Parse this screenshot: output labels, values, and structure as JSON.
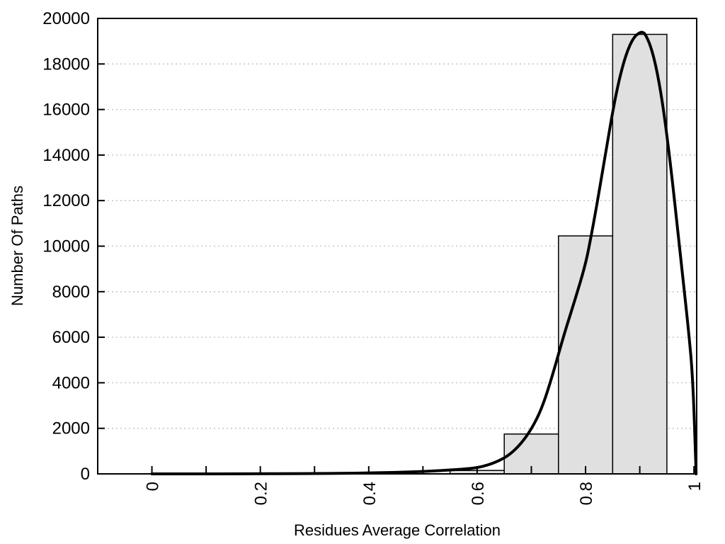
{
  "figure": {
    "background": "#ffffff",
    "text_color": "#000000"
  },
  "chart_data": {
    "type": "bar",
    "subtype": "histogram-with-fit-curve",
    "title": "",
    "xlabel": "Residues Average Correlation",
    "ylabel": "Number Of Paths",
    "xlim": [
      -0.1,
      1.005
    ],
    "ylim": [
      0,
      20000
    ],
    "grid": {
      "axis": "y",
      "style": "dotted",
      "color": "#bfbfbf"
    },
    "x_ticks": [
      {
        "v": 0.0,
        "label": "0"
      },
      {
        "v": 0.1,
        "label": ""
      },
      {
        "v": 0.2,
        "label": "0.2"
      },
      {
        "v": 0.3,
        "label": ""
      },
      {
        "v": 0.4,
        "label": "0.4"
      },
      {
        "v": 0.5,
        "label": ""
      },
      {
        "v": 0.6,
        "label": "0.6"
      },
      {
        "v": 0.7,
        "label": ""
      },
      {
        "v": 0.8,
        "label": "0.8"
      },
      {
        "v": 0.9,
        "label": ""
      },
      {
        "v": 1.0,
        "label": "1"
      }
    ],
    "y_ticks": [
      {
        "v": 0,
        "label": "0",
        "grid": false
      },
      {
        "v": 2000,
        "label": "2000",
        "grid": true
      },
      {
        "v": 4000,
        "label": "4000",
        "grid": true
      },
      {
        "v": 6000,
        "label": "6000",
        "grid": true
      },
      {
        "v": 8000,
        "label": "8000",
        "grid": true
      },
      {
        "v": 10000,
        "label": "10000",
        "grid": true
      },
      {
        "v": 12000,
        "label": "12000",
        "grid": true
      },
      {
        "v": 14000,
        "label": "14000",
        "grid": true
      },
      {
        "v": 16000,
        "label": "16000",
        "grid": true
      },
      {
        "v": 18000,
        "label": "18000",
        "grid": true
      },
      {
        "v": 20000,
        "label": "20000",
        "grid": false
      }
    ],
    "bars": {
      "fill": "#e0e0e0",
      "stroke": "#000000",
      "bins": [
        {
          "x0": 0.55,
          "x1": 0.65,
          "value": 150
        },
        {
          "x0": 0.65,
          "x1": 0.75,
          "value": 1750
        },
        {
          "x0": 0.75,
          "x1": 0.85,
          "value": 10450
        },
        {
          "x0": 0.85,
          "x1": 0.95,
          "value": 19300
        }
      ]
    },
    "curve": {
      "color": "#000000",
      "width": 4,
      "peak": {
        "x": 0.905,
        "value": 19400
      },
      "points": [
        [
          0.0,
          0
        ],
        [
          0.05,
          0
        ],
        [
          0.1,
          0
        ],
        [
          0.15,
          3
        ],
        [
          0.2,
          6
        ],
        [
          0.25,
          10
        ],
        [
          0.3,
          15
        ],
        [
          0.35,
          25
        ],
        [
          0.4,
          40
        ],
        [
          0.45,
          65
        ],
        [
          0.5,
          105
        ],
        [
          0.55,
          170
        ],
        [
          0.58,
          220
        ],
        [
          0.6,
          270
        ],
        [
          0.62,
          390
        ],
        [
          0.64,
          570
        ],
        [
          0.66,
          840
        ],
        [
          0.68,
          1300
        ],
        [
          0.7,
          1950
        ],
        [
          0.72,
          2900
        ],
        [
          0.74,
          4400
        ],
        [
          0.76,
          6100
        ],
        [
          0.78,
          7600
        ],
        [
          0.8,
          9200
        ],
        [
          0.81,
          10400
        ],
        [
          0.82,
          11700
        ],
        [
          0.83,
          13100
        ],
        [
          0.84,
          14500
        ],
        [
          0.85,
          15900
        ],
        [
          0.86,
          17100
        ],
        [
          0.87,
          18050
        ],
        [
          0.88,
          18750
        ],
        [
          0.89,
          19200
        ],
        [
          0.9,
          19380
        ],
        [
          0.905,
          19400
        ],
        [
          0.91,
          19320
        ],
        [
          0.92,
          18800
        ],
        [
          0.93,
          17900
        ],
        [
          0.94,
          16600
        ],
        [
          0.95,
          14900
        ],
        [
          0.96,
          12900
        ],
        [
          0.97,
          10700
        ],
        [
          0.98,
          8500
        ],
        [
          0.99,
          6300
        ],
        [
          0.998,
          4200
        ],
        [
          1.004,
          0
        ]
      ]
    }
  }
}
